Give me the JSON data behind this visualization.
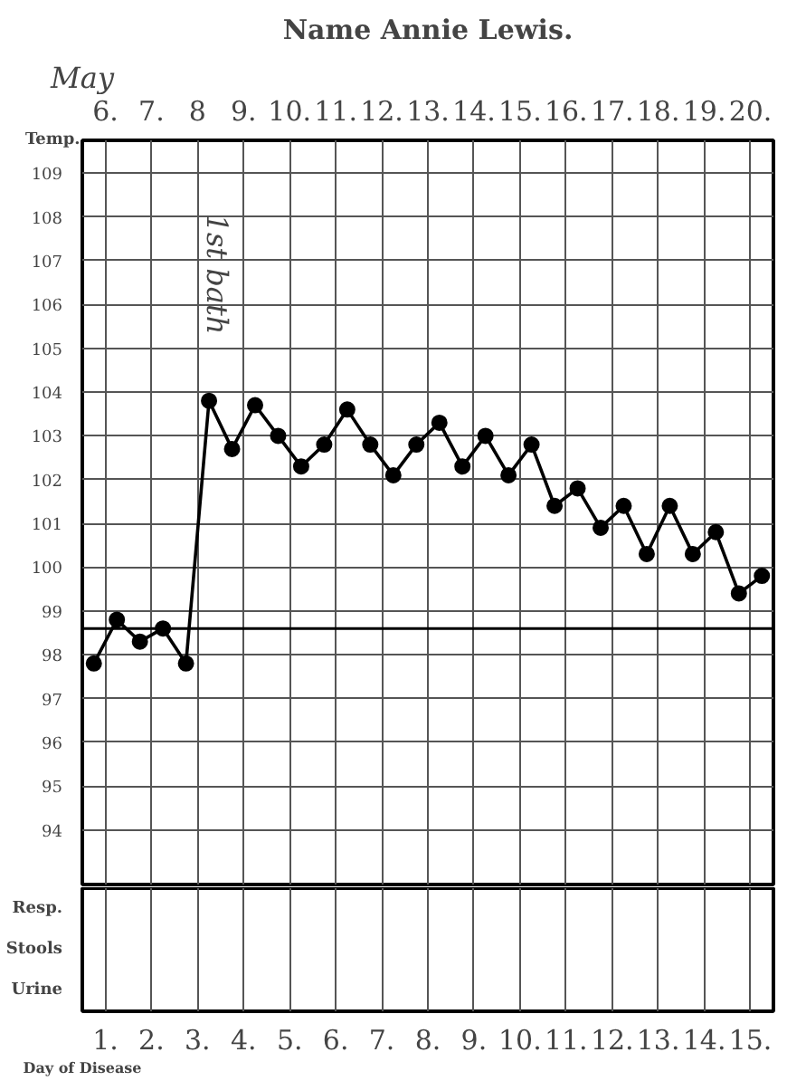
{
  "chart_data": {
    "type": "line",
    "title": "Name Annie Lewis.",
    "ylabel": "Temp.",
    "x2label": "May",
    "xlabel": "Day of Disease",
    "x": [
      0.75,
      1.25,
      1.75,
      2.25,
      2.75,
      3.25,
      3.75,
      4.25,
      4.75,
      5.25,
      5.75,
      6.25,
      6.75,
      7.25,
      7.75,
      8.25,
      8.75,
      9.25,
      9.75,
      10.25,
      10.75,
      11.25,
      11.75,
      12.25,
      12.75,
      13.25,
      13.75,
      14.25,
      14.75,
      15.25
    ],
    "series": [
      {
        "color": "#000000",
        "values": [
          97.8,
          98.8,
          98.3,
          98.6,
          97.8,
          103.8,
          102.7,
          103.7,
          103.0,
          102.3,
          102.8,
          103.6,
          102.8,
          102.1,
          102.8,
          103.3,
          102.3,
          103.0,
          102.1,
          102.8,
          101.4,
          101.8,
          100.9,
          101.4,
          100.3,
          101.4,
          100.3,
          100.8,
          99.4,
          99.8
        ]
      }
    ],
    "marker": "circle",
    "line_style": "solid",
    "grid": true,
    "xlim": [
      0.5,
      15.5
    ],
    "ylim": [
      92.75,
      109.75
    ],
    "yticks": [
      94,
      95,
      96,
      97,
      98,
      99,
      100,
      101,
      102,
      103,
      104,
      105,
      106,
      107,
      108,
      109
    ],
    "xticks": [
      {
        "value": 1,
        "label": "1."
      },
      {
        "value": 2,
        "label": "2."
      },
      {
        "value": 3,
        "label": "3."
      },
      {
        "value": 4,
        "label": "4."
      },
      {
        "value": 5,
        "label": "5."
      },
      {
        "value": 6,
        "label": "6."
      },
      {
        "value": 7,
        "label": "7."
      },
      {
        "value": 8,
        "label": "8."
      },
      {
        "value": 9,
        "label": "9."
      },
      {
        "value": 10,
        "label": "10."
      },
      {
        "value": 11,
        "label": "11."
      },
      {
        "value": 12,
        "label": "12."
      },
      {
        "value": 13,
        "label": "13."
      },
      {
        "value": 14,
        "label": "14."
      },
      {
        "value": 15,
        "label": "15."
      }
    ],
    "x2lim": [
      5.5,
      20.5
    ],
    "x2ticks": [
      {
        "value": 6,
        "label": "6."
      },
      {
        "value": 7,
        "label": "7."
      },
      8,
      {
        "value": 9,
        "label": "9."
      },
      {
        "value": 10,
        "label": "10."
      },
      {
        "value": 11,
        "label": "11."
      },
      {
        "value": 12,
        "label": "12."
      },
      {
        "value": 13,
        "label": "13."
      },
      {
        "value": 14,
        "label": "14."
      },
      {
        "value": 15,
        "label": "15."
      },
      {
        "value": 16,
        "label": "16."
      },
      {
        "value": 17,
        "label": "17."
      },
      {
        "value": 18,
        "label": "18."
      },
      {
        "value": 19,
        "label": "19."
      },
      {
        "value": 20,
        "label": "20."
      }
    ],
    "ref_lines": [
      {
        "axis": "y",
        "value": 98.6,
        "color": "#000000",
        "line_style": "solid"
      }
    ],
    "annotations": [
      "1st bath",
      "Resp.",
      "Stools",
      "Urine"
    ]
  }
}
